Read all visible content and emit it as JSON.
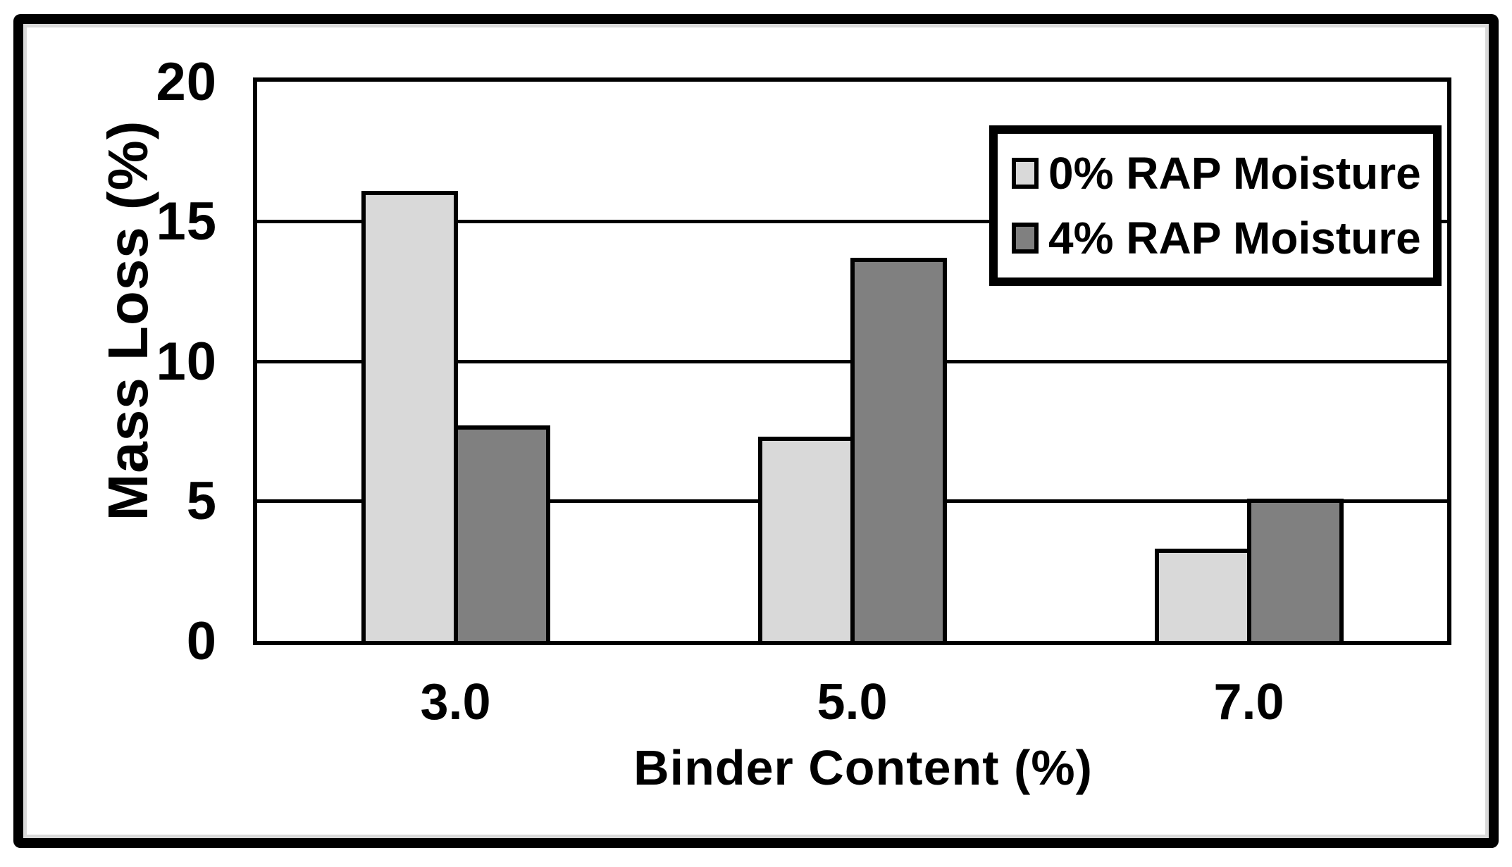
{
  "figure": {
    "background_color": "#ffffff",
    "frame_color": "#000000",
    "frame_inner_shadow_color": "#d9d9d9"
  },
  "chart_data": {
    "type": "bar",
    "title": "",
    "xlabel": "Binder Content (%)",
    "ylabel": "Mass Loss (%)",
    "categories": [
      "3.0",
      "5.0",
      "7.0"
    ],
    "series": [
      {
        "name": "0% RAP Moisture",
        "color": "#d9d9d9",
        "values": [
          16.1,
          7.3,
          3.3
        ]
      },
      {
        "name": "4% RAP Moisture",
        "color": "#808080",
        "values": [
          7.7,
          13.7,
          5.1
        ]
      }
    ],
    "ylim": [
      0,
      20
    ],
    "yticks": [
      20,
      15,
      10,
      5,
      0
    ],
    "ytick_labels": [
      "20",
      "15",
      "10",
      "5",
      "0"
    ],
    "grid": "horizontal",
    "gridline_color": "#000000",
    "bar_border_color": "#000000",
    "legend_position": "top-right"
  }
}
